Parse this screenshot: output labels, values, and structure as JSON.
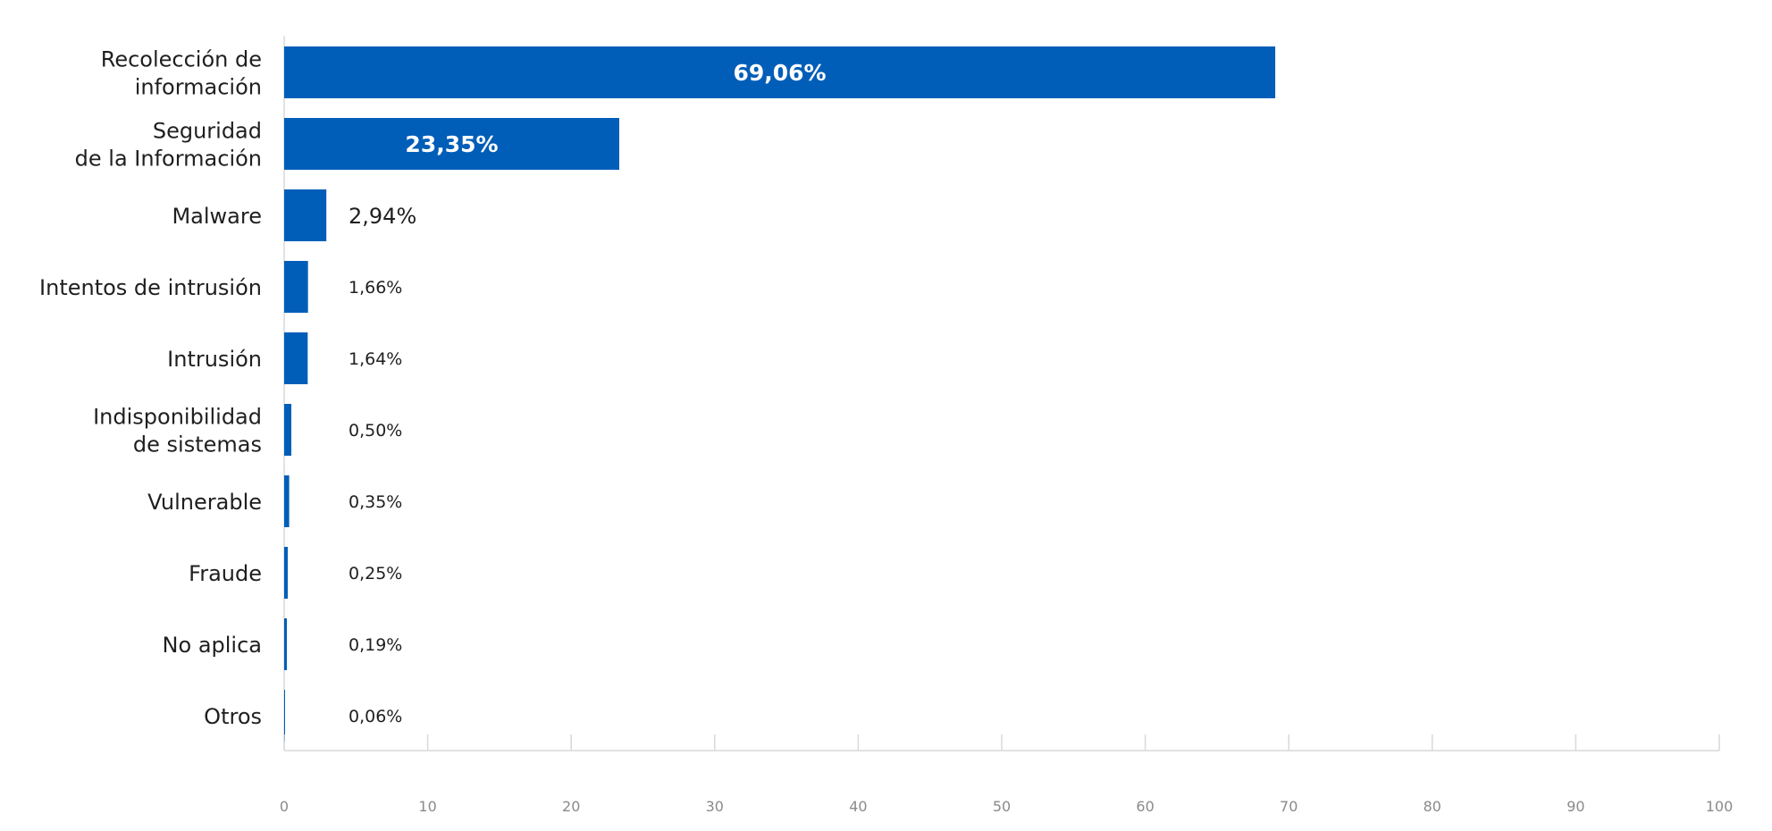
{
  "chart_data": {
    "type": "bar",
    "orientation": "horizontal",
    "categories": [
      [
        "Recolección de",
        "información"
      ],
      [
        "Seguridad",
        "de la Información"
      ],
      [
        "Malware"
      ],
      [
        "Intentos de intrusión"
      ],
      [
        "Intrusión"
      ],
      [
        "Indisponibilidad",
        "de sistemas"
      ],
      [
        "Vulnerable"
      ],
      [
        "Fraude"
      ],
      [
        "No aplica"
      ],
      [
        "Otros"
      ]
    ],
    "values": [
      69.06,
      23.35,
      2.94,
      1.66,
      1.64,
      0.5,
      0.35,
      0.25,
      0.19,
      0.06
    ],
    "value_labels": [
      "69,06%",
      "23,35%",
      "2,94%",
      "1,66%",
      "1,64%",
      "0,50%",
      "0,35%",
      "0,25%",
      "0,19%",
      "0,06%"
    ],
    "xlim": [
      0,
      100
    ],
    "x_ticks": [
      0,
      10,
      20,
      30,
      40,
      50,
      60,
      70,
      80,
      90,
      100
    ],
    "x_tick_labels": [
      "0",
      "10",
      "20",
      "30",
      "40",
      "50",
      "60",
      "70",
      "80",
      "90",
      "100"
    ],
    "title": "",
    "xlabel": "",
    "ylabel": "",
    "grid": false,
    "legend": "none",
    "colors": {
      "bar": "#005eb8",
      "axis": "#d9d9d9",
      "tick_text": "#8a8a8a",
      "label_text": "#1f1f1f",
      "inside_label_text": "#ffffff"
    }
  }
}
